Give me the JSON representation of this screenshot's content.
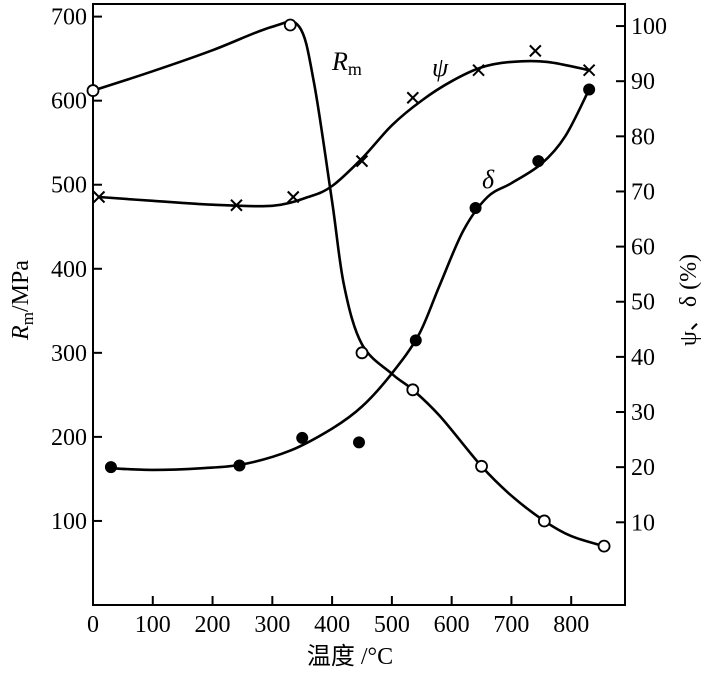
{
  "chart_data": {
    "type": "line",
    "xlabel": "温度 /°C",
    "ylabel_left": "Rm/MPa",
    "ylabel_left_main": "R",
    "ylabel_left_sub": "m",
    "ylabel_left_unit": "/MPa",
    "ylabel_right": "ψ、δ (%)",
    "xlim": [
      0,
      890
    ],
    "ylim_left": [
      0,
      715
    ],
    "ylim_right": [
      -5,
      104
    ],
    "x_ticks": [
      0,
      100,
      200,
      300,
      400,
      500,
      600,
      700,
      800
    ],
    "y_left_ticks": [
      100,
      200,
      300,
      400,
      500,
      600,
      700
    ],
    "y_right_ticks": [
      10,
      20,
      30,
      40,
      50,
      60,
      70,
      80,
      90,
      100
    ],
    "grid": false,
    "series": [
      {
        "name": "Rm",
        "name_main": "R",
        "name_sub": "m",
        "axis": "left",
        "marker": "open-circle",
        "x": [
          0,
          330,
          450,
          535,
          650,
          755,
          855
        ],
        "y": [
          612,
          690,
          300,
          256,
          165,
          100,
          70
        ],
        "curve": [
          [
            0,
            612
          ],
          [
            100,
            635
          ],
          [
            200,
            660
          ],
          [
            300,
            688
          ],
          [
            345,
            688
          ],
          [
            370,
            620
          ],
          [
            400,
            480
          ],
          [
            420,
            380
          ],
          [
            450,
            310
          ],
          [
            500,
            275
          ],
          [
            535,
            256
          ],
          [
            580,
            225
          ],
          [
            650,
            165
          ],
          [
            700,
            130
          ],
          [
            755,
            100
          ],
          [
            800,
            82
          ],
          [
            855,
            70
          ]
        ]
      },
      {
        "name": "ψ",
        "axis": "right",
        "marker": "x",
        "x": [
          10,
          240,
          335,
          450,
          535,
          645,
          740,
          830
        ],
        "y": [
          69,
          67.5,
          69,
          75.5,
          87,
          92,
          95.5,
          92
        ],
        "curve": [
          [
            10,
            69
          ],
          [
            100,
            68.3
          ],
          [
            200,
            67.6
          ],
          [
            300,
            67.4
          ],
          [
            360,
            69
          ],
          [
            400,
            71
          ],
          [
            450,
            76
          ],
          [
            500,
            82
          ],
          [
            550,
            86.5
          ],
          [
            600,
            90
          ],
          [
            650,
            92.5
          ],
          [
            700,
            93.5
          ],
          [
            760,
            93.5
          ],
          [
            830,
            92
          ]
        ]
      },
      {
        "name": "δ",
        "axis": "right",
        "marker": "filled-circle",
        "x": [
          30,
          245,
          350,
          445,
          540,
          640,
          745,
          830
        ],
        "y": [
          20,
          20.3,
          25.3,
          24.5,
          43,
          67,
          75.5,
          88.5
        ],
        "curve": [
          [
            30,
            19.8
          ],
          [
            100,
            19.5
          ],
          [
            180,
            19.8
          ],
          [
            250,
            20.5
          ],
          [
            330,
            23
          ],
          [
            400,
            27
          ],
          [
            450,
            31
          ],
          [
            500,
            37
          ],
          [
            545,
            44
          ],
          [
            580,
            53
          ],
          [
            620,
            63
          ],
          [
            660,
            69
          ],
          [
            700,
            71.5
          ],
          [
            750,
            75
          ],
          [
            790,
            80
          ],
          [
            830,
            88.5
          ]
        ]
      }
    ]
  }
}
